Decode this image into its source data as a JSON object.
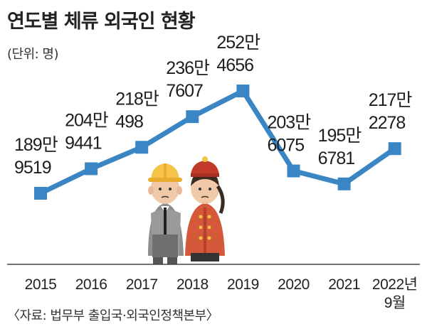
{
  "header": {
    "title": "연도별 체류 외국인 현황",
    "unit": "(단위: 명)",
    "source": "〈자료: 법무부 출입국·외국인정책본부〉"
  },
  "chart_data": {
    "type": "line",
    "title": "연도별 체류 외국인 현황",
    "xlabel": "",
    "ylabel": "",
    "categories": [
      "2015",
      "2016",
      "2017",
      "2018",
      "2019",
      "2020",
      "2021",
      "2022년 9월"
    ],
    "values": [
      1899519,
      2049441,
      2180498,
      2367607,
      2524656,
      2036075,
      1956781,
      2172278
    ],
    "data_labels": [
      [
        "189만",
        "9519"
      ],
      [
        "204만",
        "9441"
      ],
      [
        "218만",
        "498"
      ],
      [
        "236만",
        "7607"
      ],
      [
        "252만",
        "4656"
      ],
      [
        "203만",
        "6075"
      ],
      [
        "195만",
        "6781"
      ],
      [
        "217만",
        "2278"
      ]
    ],
    "tick_labels": [
      [
        "2015"
      ],
      [
        "2016"
      ],
      [
        "2017"
      ],
      [
        "2018"
      ],
      [
        "2019"
      ],
      [
        "2020"
      ],
      [
        "2021"
      ],
      [
        "2022년",
        "9월"
      ]
    ],
    "grid": false,
    "legend": "none",
    "colors": {
      "line": "#3a86c4",
      "marker": "#3a86c4",
      "axis": "#444444"
    }
  }
}
